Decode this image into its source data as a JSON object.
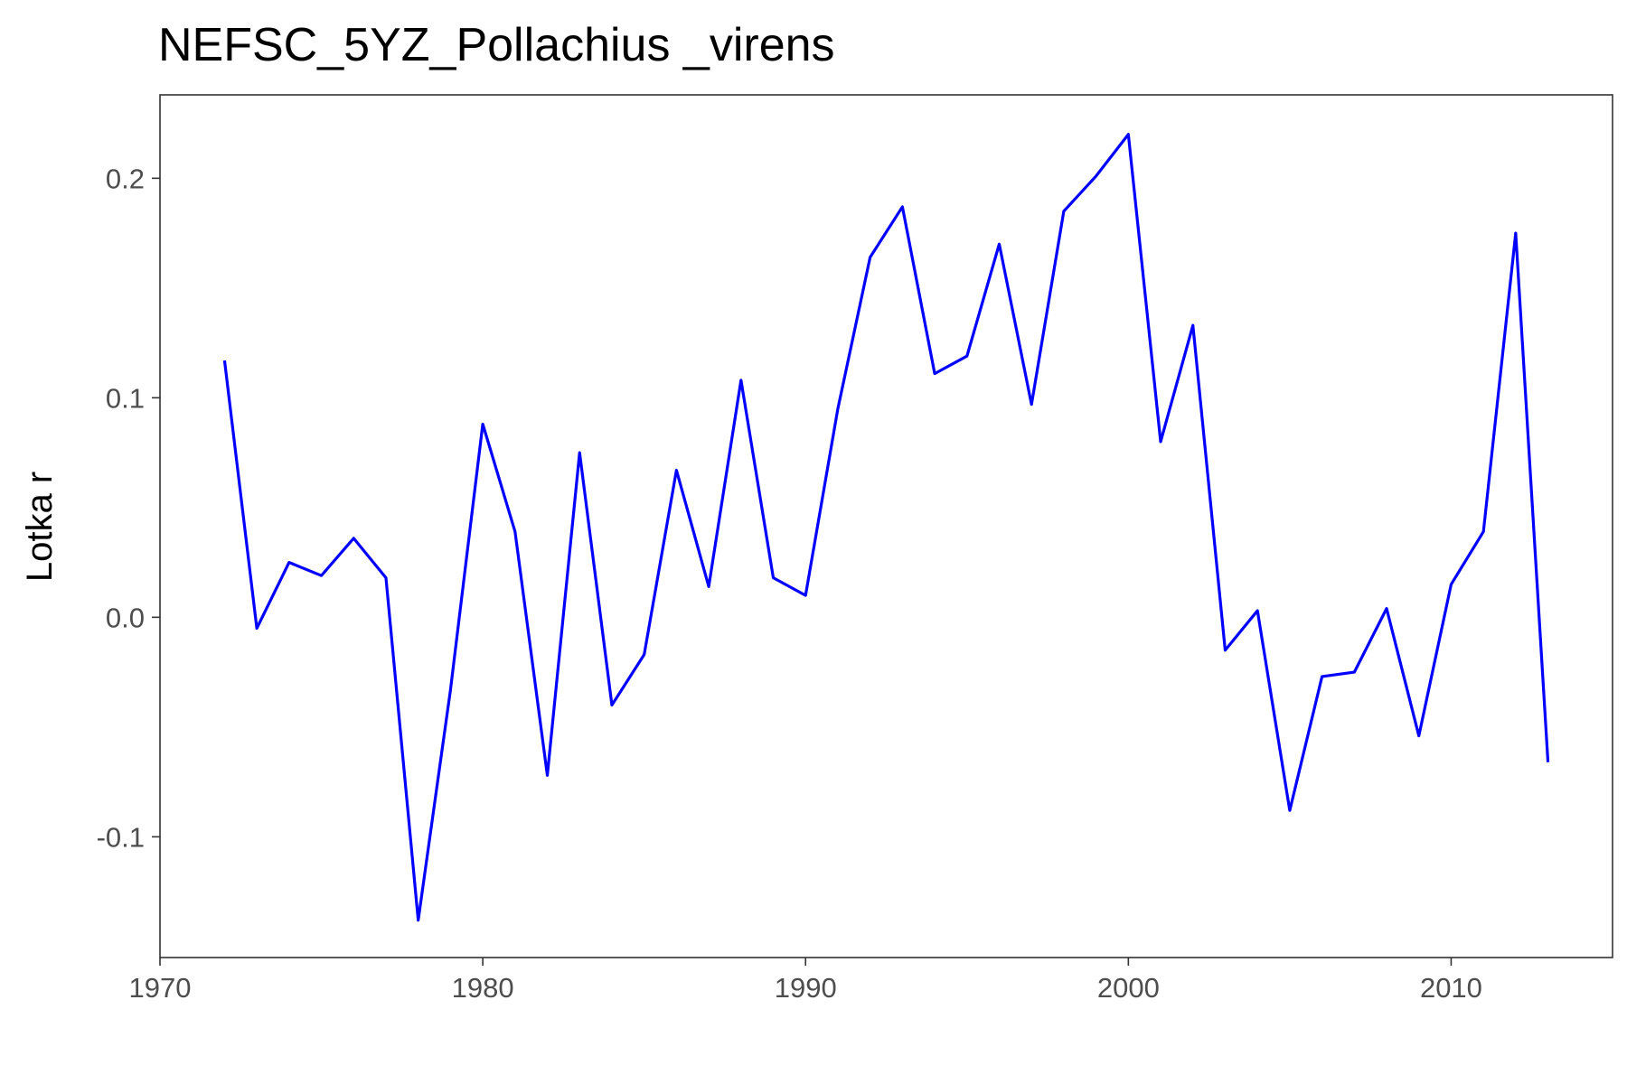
{
  "chart_data": {
    "type": "line",
    "title": "NEFSC_5YZ_Pollachius _virens",
    "xlabel": "",
    "ylabel": "Lotka r",
    "xlim": [
      1970,
      2015
    ],
    "ylim": [
      -0.155,
      0.238
    ],
    "x_ticks": [
      1970,
      1980,
      1990,
      2000,
      2010
    ],
    "x_tick_labels": [
      "1970",
      "1980",
      "1990",
      "2000",
      "2010"
    ],
    "y_ticks": [
      -0.1,
      0.0,
      0.1,
      0.2
    ],
    "y_tick_labels": [
      "-0.1",
      "0.0",
      "0.1",
      "0.2"
    ],
    "grid": false,
    "line_color": "#0000ff",
    "series": [
      {
        "x": [
          1972,
          1973,
          1974,
          1975,
          1976,
          1977,
          1978,
          1979,
          1980,
          1981,
          1982,
          1983,
          1984,
          1985,
          1986,
          1987,
          1988,
          1989,
          1990,
          1991,
          1992,
          1993,
          1994,
          1995,
          1996,
          1997,
          1998,
          1999,
          2000,
          2001,
          2002,
          2003,
          2004,
          2005,
          2006,
          2007,
          2008,
          2009,
          2010,
          2011,
          2012,
          2013
        ],
        "values": [
          0.117,
          -0.005,
          0.025,
          0.019,
          0.036,
          0.018,
          -0.138,
          -0.033,
          0.088,
          0.039,
          -0.072,
          0.075,
          -0.04,
          -0.017,
          0.067,
          0.014,
          0.108,
          0.018,
          0.01,
          0.095,
          0.164,
          0.187,
          0.111,
          0.119,
          0.17,
          0.097,
          0.185,
          0.201,
          0.22,
          0.08,
          0.133,
          -0.015,
          0.003,
          -0.088,
          -0.027,
          -0.025,
          0.004,
          -0.054,
          0.015,
          0.039,
          0.175,
          -0.066
        ]
      }
    ]
  }
}
